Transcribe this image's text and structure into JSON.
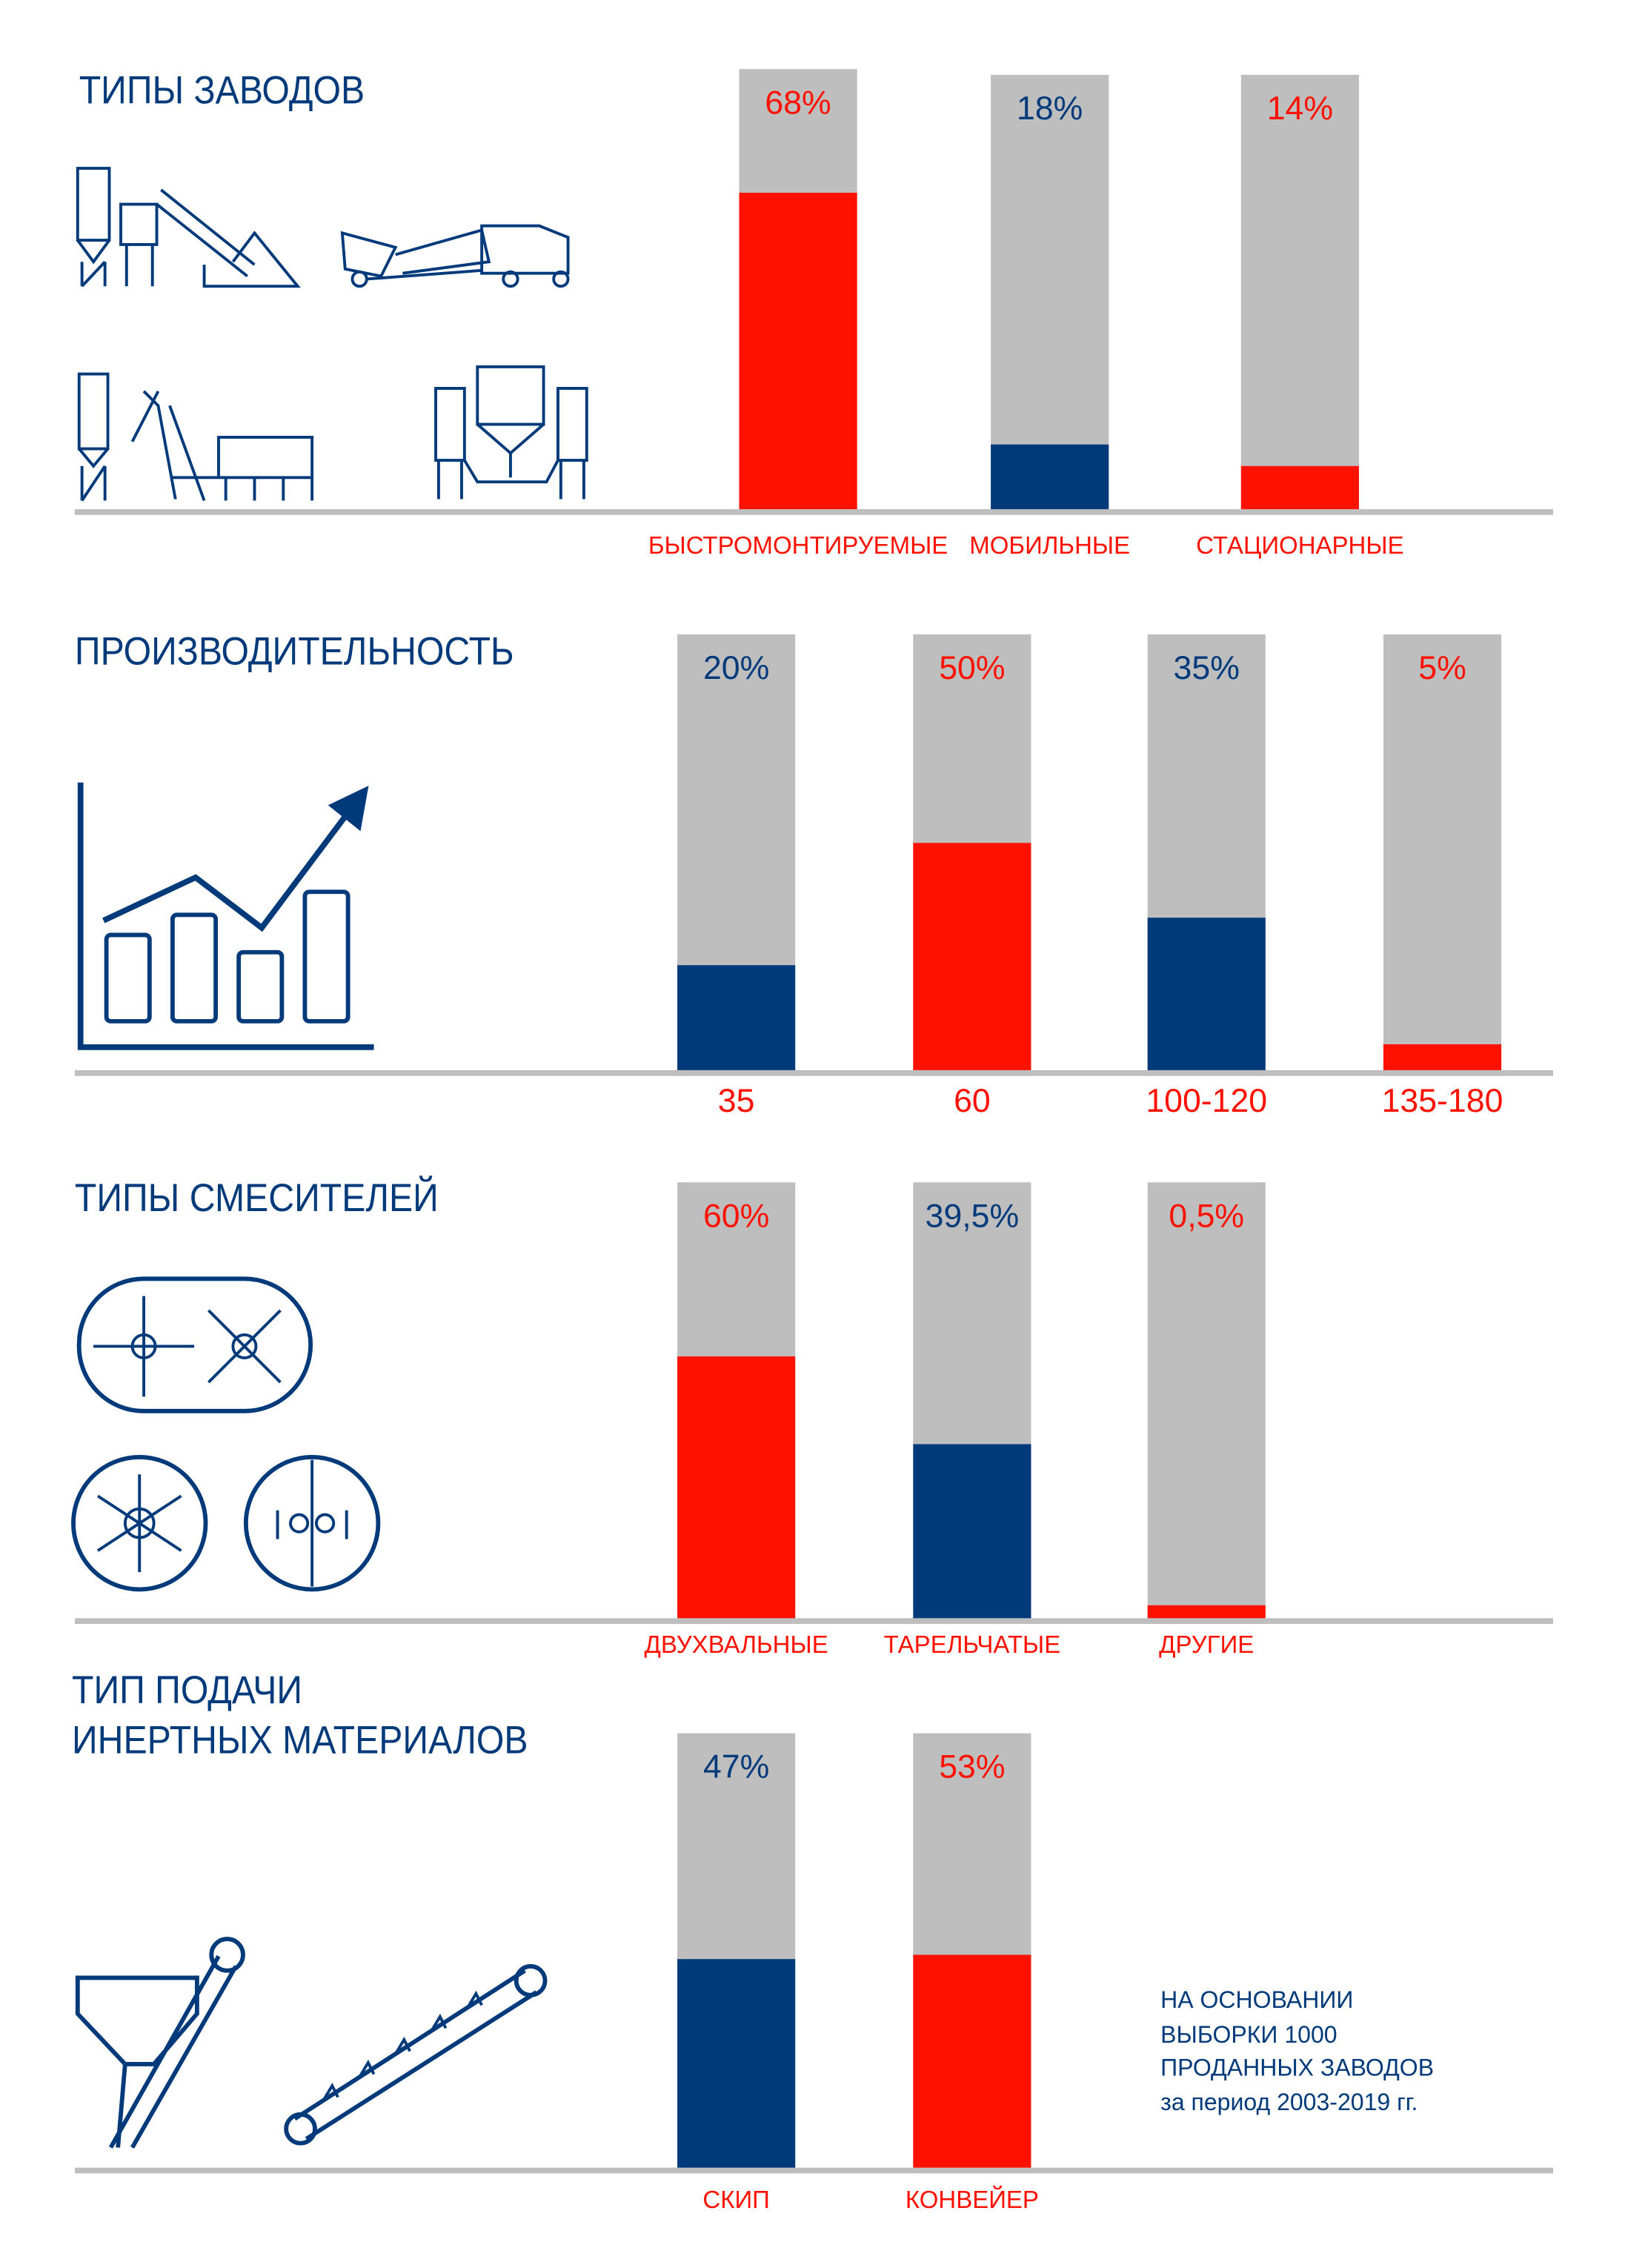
{
  "colors": {
    "red": "#ff1100",
    "navy": "#003a7a",
    "gray": "#bebebe"
  },
  "note": [
    "НА ОСНОВАНИИ",
    "ВЫБОРКИ 1000",
    "ПРОДАННЫХ ЗАВОДОВ",
    "за период 2003-2019 гг."
  ],
  "chart_data": [
    {
      "type": "bar",
      "title": "ТИПЫ ЗАВОДОВ",
      "categories": [
        "БЫСТРОМОНТИРУЕМЫЕ",
        "МОБИЛЬНЫЕ",
        "СТАЦИОНАРНЫЕ"
      ],
      "values": [
        68,
        18,
        14
      ],
      "labels": [
        "68%",
        "18%",
        "14%"
      ],
      "fill": [
        0.72,
        0.15,
        0.1
      ],
      "colors": [
        "red",
        "navy",
        "red"
      ],
      "ylim": [
        0,
        100
      ]
    },
    {
      "type": "bar",
      "title": "ПРОИЗВОДИТЕЛЬНОСТЬ",
      "categories": [
        "35",
        "60",
        "100-120",
        "135-180"
      ],
      "values": [
        20,
        50,
        35,
        5
      ],
      "labels": [
        "20%",
        "50%",
        "35%",
        "5%"
      ],
      "fill": [
        0.24,
        0.52,
        0.35,
        0.06
      ],
      "colors": [
        "navy",
        "red",
        "navy",
        "red"
      ],
      "ylim": [
        0,
        100
      ]
    },
    {
      "type": "bar",
      "title": "ТИПЫ СМЕСИТЕЛЕЙ",
      "categories": [
        "ДВУХВАЛЬНЫЕ",
        "ТАРЕЛЬЧАТЫЕ",
        "ДРУГИЕ"
      ],
      "values": [
        60,
        39.5,
        0.5
      ],
      "labels": [
        "60%",
        "39,5%",
        "0,5%"
      ],
      "fill": [
        0.6,
        0.4,
        0.03
      ],
      "colors": [
        "red",
        "navy",
        "red"
      ],
      "ylim": [
        0,
        100
      ]
    },
    {
      "type": "bar",
      "title": [
        "ТИП ПОДАЧИ",
        "ИНЕРТНЫХ МАТЕРИАЛОВ"
      ],
      "categories": [
        "СКИП",
        "КОНВЕЙЕР"
      ],
      "values": [
        47,
        53
      ],
      "labels": [
        "47%",
        "53%"
      ],
      "fill": [
        0.48,
        0.49
      ],
      "colors": [
        "navy",
        "red"
      ],
      "ylim": [
        0,
        100
      ]
    }
  ]
}
